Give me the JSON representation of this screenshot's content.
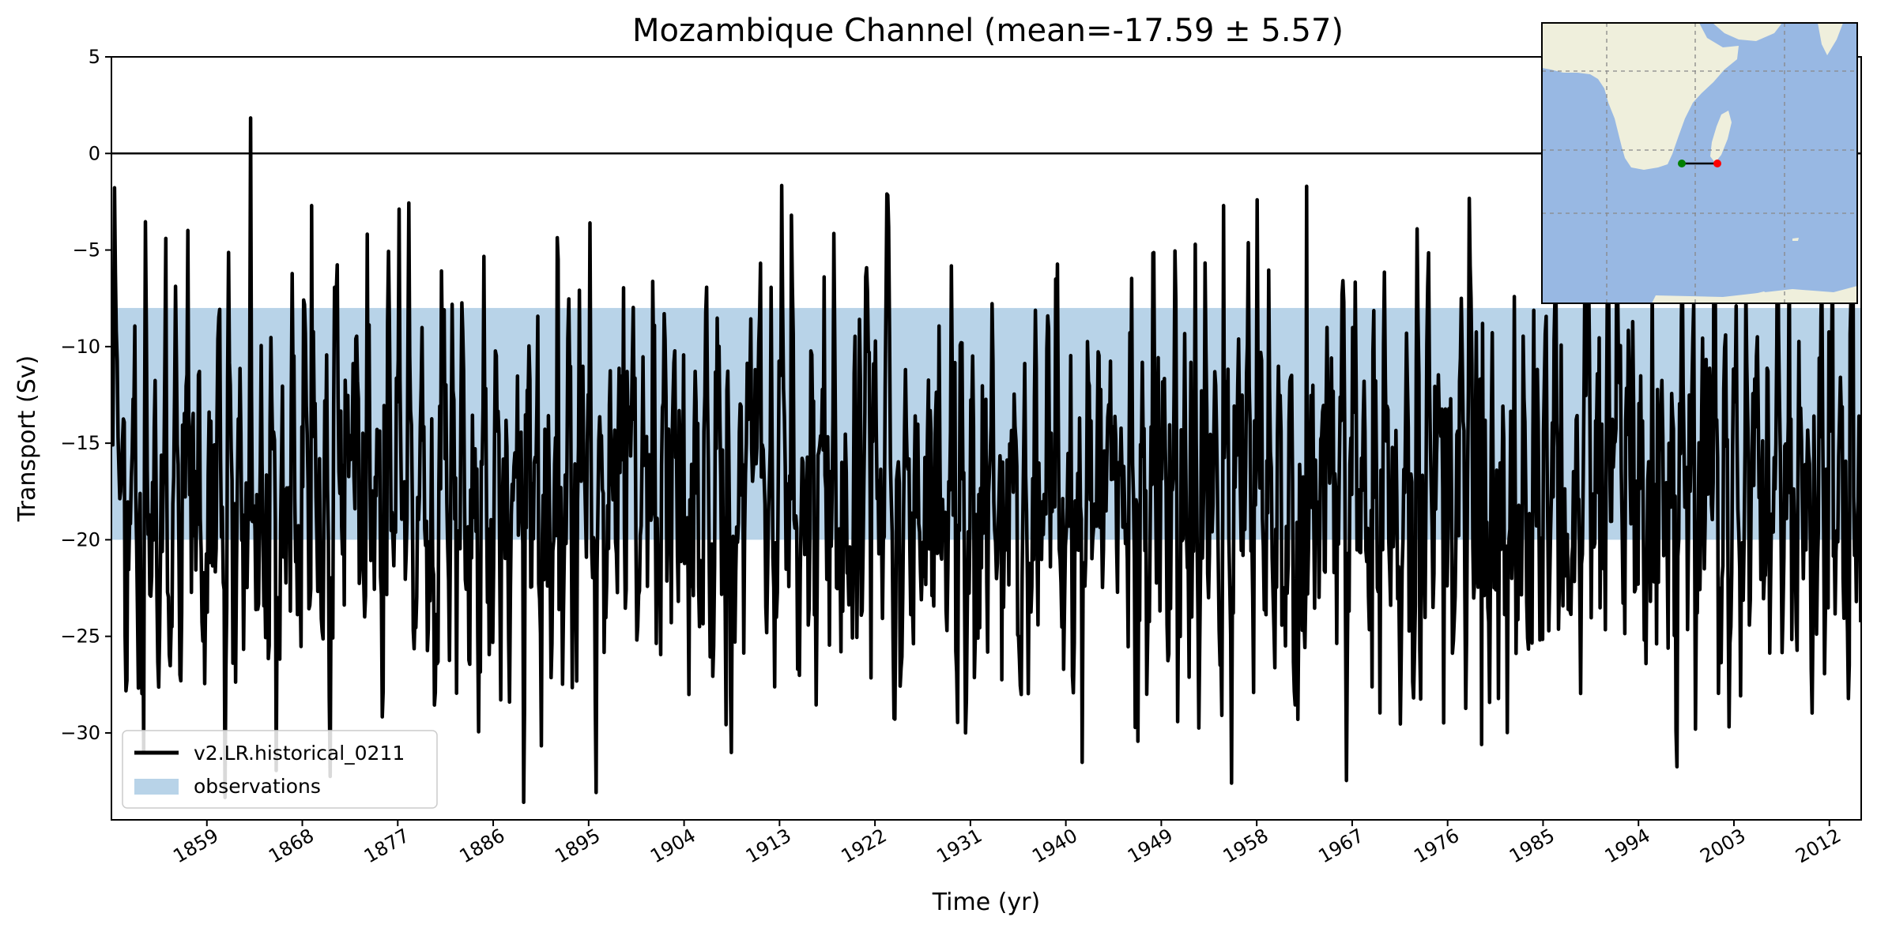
{
  "chart_data": {
    "type": "line",
    "title": "Mozambique Channel (mean=-17.59 ± 5.57)",
    "xlabel": "Time (yr)",
    "ylabel": "Transport (Sv)",
    "xlim": [
      1850,
      2015
    ],
    "ylim": [
      -34.5,
      5
    ],
    "x_ticks": [
      1859,
      1868,
      1877,
      1886,
      1895,
      1904,
      1913,
      1922,
      1931,
      1940,
      1949,
      1958,
      1967,
      1976,
      1985,
      1994,
      2003,
      2012
    ],
    "y_ticks": [
      5,
      0,
      -5,
      -10,
      -15,
      -20,
      -25,
      -30
    ],
    "reference_line": 0,
    "grid": false,
    "legend_position": "lower-left",
    "observations_band": {
      "name": "observations",
      "range": [
        -20,
        -8
      ],
      "color": "#b8d3e8"
    },
    "series": [
      {
        "name": "v2.LR.historical_0211",
        "color": "#000000",
        "mean": -17.59,
        "std": 5.57,
        "sampling": "monthly, 1850-01 to 2014-12",
        "annotated_extrema": [
          {
            "x": 1853.0,
            "y": -31.0
          },
          {
            "x": 1855.1,
            "y": -4.4
          },
          {
            "x": 1868.8,
            "y": -2.7
          },
          {
            "x": 1895.1,
            "y": -3.6
          },
          {
            "x": 1914.1,
            "y": -3.2
          },
          {
            "x": 1954.8,
            "y": -2.7
          },
          {
            "x": 1955.6,
            "y": -32.6
          },
          {
            "x": 1962.7,
            "y": -1.7
          },
          {
            "x": 1979.2,
            "y": -30.6
          },
          {
            "x": 1999.3,
            "y": -29.8
          }
        ]
      }
    ]
  },
  "inset_map": {
    "description": "Southern Africa / Mozambique Channel section",
    "land_color": "#efefdc",
    "ocean_color": "#98b8e3",
    "start_marker_color": "#008000",
    "end_marker_color": "#ff0000"
  }
}
